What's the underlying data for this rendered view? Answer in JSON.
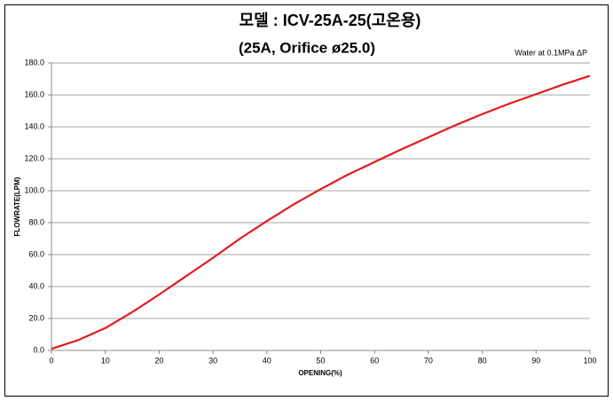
{
  "chart_data": {
    "type": "line",
    "title": "모델 : ICV-25A-25(고온용)",
    "subtitle": "(25A, Orifice ø25.0)",
    "annotation": "Water at 0.1MPa ΔP",
    "x_label": "OPENING(%)",
    "y_label": "FLOWRATE(LPM)",
    "x": [
      0,
      5,
      10,
      15,
      20,
      25,
      30,
      35,
      40,
      45,
      50,
      55,
      60,
      65,
      70,
      75,
      80,
      85,
      90,
      95,
      100
    ],
    "series": [
      {
        "name": "ICV-25A-25",
        "color": "#e31b1b",
        "values": [
          1,
          6.5,
          14,
          24,
          35,
          46.5,
          58,
          70,
          81,
          91.5,
          101,
          110,
          118,
          126,
          133.5,
          141,
          148,
          154.5,
          160.5,
          166.5,
          172
        ]
      }
    ],
    "xlim": [
      0,
      100
    ],
    "xticks": [
      0,
      10,
      20,
      30,
      40,
      50,
      60,
      70,
      80,
      90,
      100
    ],
    "ylim": [
      0,
      180
    ],
    "yticks": [
      {
        "value": 0,
        "label": "0.0"
      },
      {
        "value": 20,
        "label": "20.0"
      },
      {
        "value": 40,
        "label": "40.0"
      },
      {
        "value": 60,
        "label": "60.0"
      },
      {
        "value": 80,
        "label": "80.0"
      },
      {
        "value": 100,
        "label": "100.0"
      },
      {
        "value": 120,
        "label": "120.0"
      },
      {
        "value": 140,
        "label": "140.0"
      },
      {
        "value": 160,
        "label": "160.0"
      },
      {
        "value": 180,
        "label": "180.0"
      }
    ],
    "grid": true
  }
}
